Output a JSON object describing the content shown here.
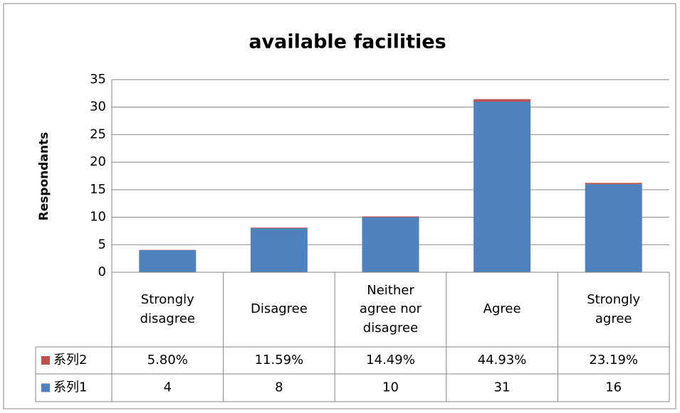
{
  "chart_data": {
    "type": "bar",
    "stacked": true,
    "title": "available facilities",
    "y_label": "Respondants",
    "categories": [
      "Strongly disagree",
      "Disagree",
      "Neither agree nor disagree",
      "Agree",
      "Strongly agree"
    ],
    "series": [
      {
        "name": "系列1",
        "color": "#4f81bd",
        "values": [
          4,
          8,
          10,
          31,
          16
        ]
      },
      {
        "name": "系列2",
        "color": "#c0504d",
        "values": [
          0.058,
          0.1159,
          0.1449,
          0.4493,
          0.2319
        ],
        "value_labels": [
          "5.80%",
          "11.59%",
          "14.49%",
          "44.93%",
          "23.19%"
        ]
      }
    ],
    "ylim": [
      0,
      35
    ],
    "yticks": [
      0,
      5,
      10,
      15,
      20,
      25,
      30,
      35
    ],
    "grid": true,
    "data_table": true
  }
}
